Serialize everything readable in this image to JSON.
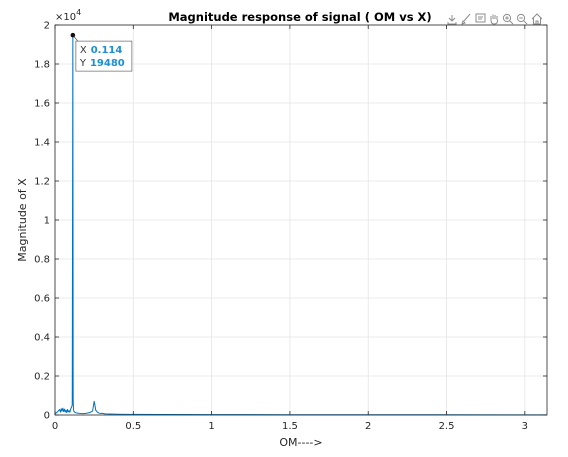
{
  "chart_data": {
    "type": "line",
    "title": "Magnitude response of signal ( OM vs X)",
    "xlabel": "OM---->",
    "ylabel": "Magnitude of X",
    "y_exponent_label": "×10",
    "y_exponent_power": "4",
    "xlim": [
      0,
      3.1416
    ],
    "ylim": [
      0,
      20000
    ],
    "x_ticks": [
      0,
      0.5,
      1,
      1.5,
      2,
      2.5,
      3
    ],
    "x_tick_labels": [
      "0",
      "0.5",
      "1",
      "1.5",
      "2",
      "2.5",
      "3"
    ],
    "y_ticks": [
      0,
      2000,
      4000,
      6000,
      8000,
      10000,
      12000,
      14000,
      16000,
      18000,
      20000
    ],
    "y_tick_labels": [
      "0",
      "0.2",
      "0.4",
      "0.6",
      "0.8",
      "1",
      "1.2",
      "1.4",
      "1.6",
      "1.8",
      "2"
    ],
    "grid": true,
    "line_color": "#0072bd",
    "series": [
      {
        "x": [
          0,
          0.01,
          0.02,
          0.03,
          0.035,
          0.04,
          0.045,
          0.05,
          0.055,
          0.06,
          0.065,
          0.07,
          0.075,
          0.08,
          0.085,
          0.09,
          0.095,
          0.1,
          0.105,
          0.11,
          0.112,
          0.114,
          0.116,
          0.118,
          0.12,
          0.125,
          0.13,
          0.14,
          0.15,
          0.16,
          0.18,
          0.2,
          0.22,
          0.24,
          0.25,
          0.255,
          0.26,
          0.27,
          0.28,
          0.29,
          0.3,
          0.32,
          0.35,
          0.4,
          0.5,
          0.7,
          1.0,
          1.5,
          2.0,
          2.5,
          3.0,
          3.1416
        ],
        "y": [
          50,
          120,
          200,
          280,
          150,
          320,
          200,
          350,
          180,
          300,
          150,
          250,
          120,
          280,
          160,
          220,
          140,
          300,
          400,
          500,
          9900,
          19480,
          800,
          300,
          200,
          150,
          120,
          100,
          90,
          80,
          70,
          90,
          120,
          200,
          700,
          500,
          250,
          150,
          100,
          80,
          90,
          60,
          50,
          40,
          30,
          25,
          20,
          15,
          12,
          10,
          8,
          8
        ]
      }
    ]
  },
  "datatip": {
    "x_label": "X",
    "x_value": "0.114",
    "y_label": "Y",
    "y_value": "19480",
    "x": 0.114,
    "y": 19480
  },
  "toolbar": {
    "icons": [
      "export-icon",
      "brush-icon",
      "datatip-icon",
      "pan-icon",
      "zoom-in-icon",
      "zoom-out-icon",
      "home-icon"
    ]
  }
}
